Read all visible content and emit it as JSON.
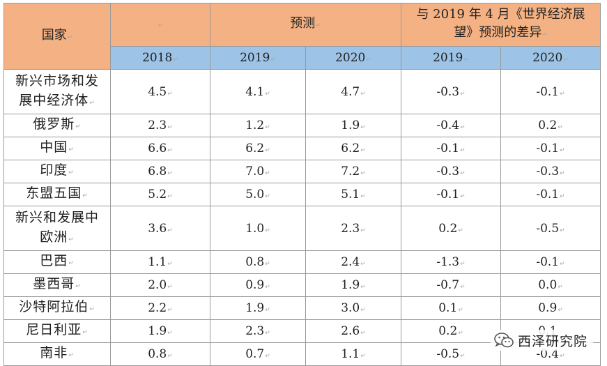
{
  "table": {
    "header": {
      "country_label": "国家",
      "blank_label": "",
      "forecast_label": "预测",
      "diff_label_line1": "与 2019 年 4 月《世界经济展",
      "diff_label_line2": "望》预测的差异",
      "years": [
        "2018",
        "2019",
        "2020",
        "2019",
        "2020"
      ]
    },
    "rows": [
      {
        "country": [
          "新兴市场和发",
          "展中经济体"
        ],
        "values": [
          "4.5",
          "4.1",
          "4.7",
          "-0.3",
          "-0.1"
        ]
      },
      {
        "country": [
          "俄罗斯"
        ],
        "values": [
          "2.3",
          "1.2",
          "1.9",
          "-0.4",
          "0.2"
        ]
      },
      {
        "country": [
          "中国"
        ],
        "values": [
          "6.6",
          "6.2",
          "6.2",
          "-0.1",
          "-0.1"
        ]
      },
      {
        "country": [
          "印度"
        ],
        "values": [
          "6.8",
          "7.0",
          "7.2",
          "-0.3",
          "-0.3"
        ]
      },
      {
        "country": [
          "东盟五国"
        ],
        "values": [
          "5.2",
          "5.0",
          "5.1",
          "-0.1",
          "-0.1"
        ]
      },
      {
        "country": [
          "新兴和发展中",
          "欧洲"
        ],
        "values": [
          "3.6",
          "1.0",
          "2.3",
          "0.2",
          "-0.5"
        ]
      },
      {
        "country": [
          "巴西"
        ],
        "values": [
          "1.1",
          "0.8",
          "2.4",
          "-1.3",
          "-0.1"
        ]
      },
      {
        "country": [
          "墨西哥"
        ],
        "values": [
          "2.0",
          "0.9",
          "1.9",
          "-0.7",
          "0.0"
        ]
      },
      {
        "country": [
          "沙特阿拉伯"
        ],
        "values": [
          "2.2",
          "1.9",
          "3.0",
          "0.1",
          "0.9"
        ]
      },
      {
        "country": [
          "尼日利亚"
        ],
        "values": [
          "1.9",
          "2.3",
          "2.6",
          "0.2",
          "0.1"
        ]
      },
      {
        "country": [
          "南非"
        ],
        "values": [
          "0.8",
          "0.7",
          "1.1",
          "-0.5",
          "-0.4"
        ]
      }
    ]
  },
  "watermark": {
    "text": "西泽研究院",
    "icon": "wechat-icon"
  },
  "colors": {
    "header_orange": "#f4b183",
    "header_blue": "#9dc3e6",
    "border": "#9a9a9a",
    "paragraph_mark": "#a8a8a8"
  },
  "paragraph_mark": "↵"
}
